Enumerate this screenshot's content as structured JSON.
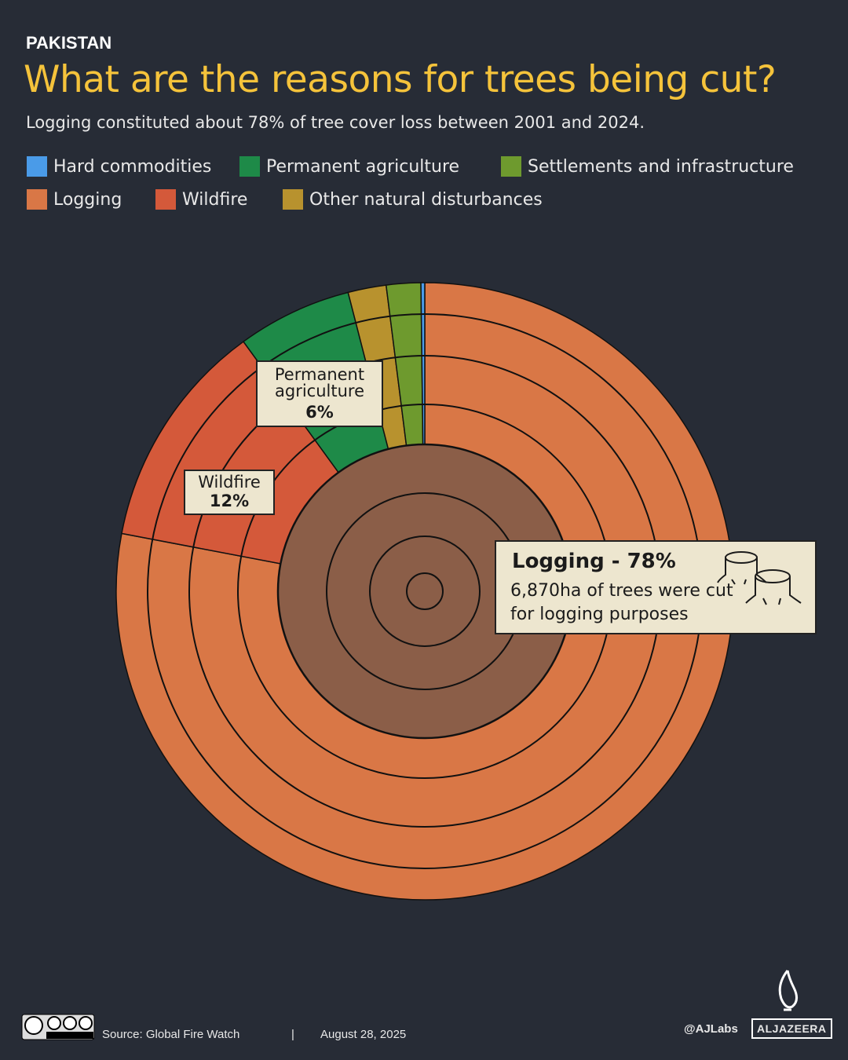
{
  "chart_data": {
    "type": "pie",
    "kicker": "PAKISTAN",
    "title": "What are the reasons for trees being cut?",
    "subtitle": "Logging constituted about 78% of tree cover loss between 2001 and 2024.",
    "categories": [
      "Logging",
      "Wildfire",
      "Permanent agriculture",
      "Other natural disturbances",
      "Settlements and infrastructure",
      "Hard commodities"
    ],
    "values": [
      78,
      12,
      6,
      2,
      1.8,
      0.2
    ],
    "colors": [
      "#d97746",
      "#d4593a",
      "#1e8a48",
      "#b8922e",
      "#6e9a2e",
      "#4a9be8"
    ],
    "annotations": [
      {
        "title": "Permanent agriculture",
        "label": "6%"
      },
      {
        "title": "Wildfire",
        "label": "12%"
      },
      {
        "title": "Logging - 78%",
        "label": "6,870ha of trees were cut for logging purposes"
      }
    ],
    "source": "Source:  Global Fire Watch",
    "separator": "|",
    "date": "August 28, 2025",
    "credit": "@AJLabs",
    "brand": "ALJAZEERA"
  }
}
